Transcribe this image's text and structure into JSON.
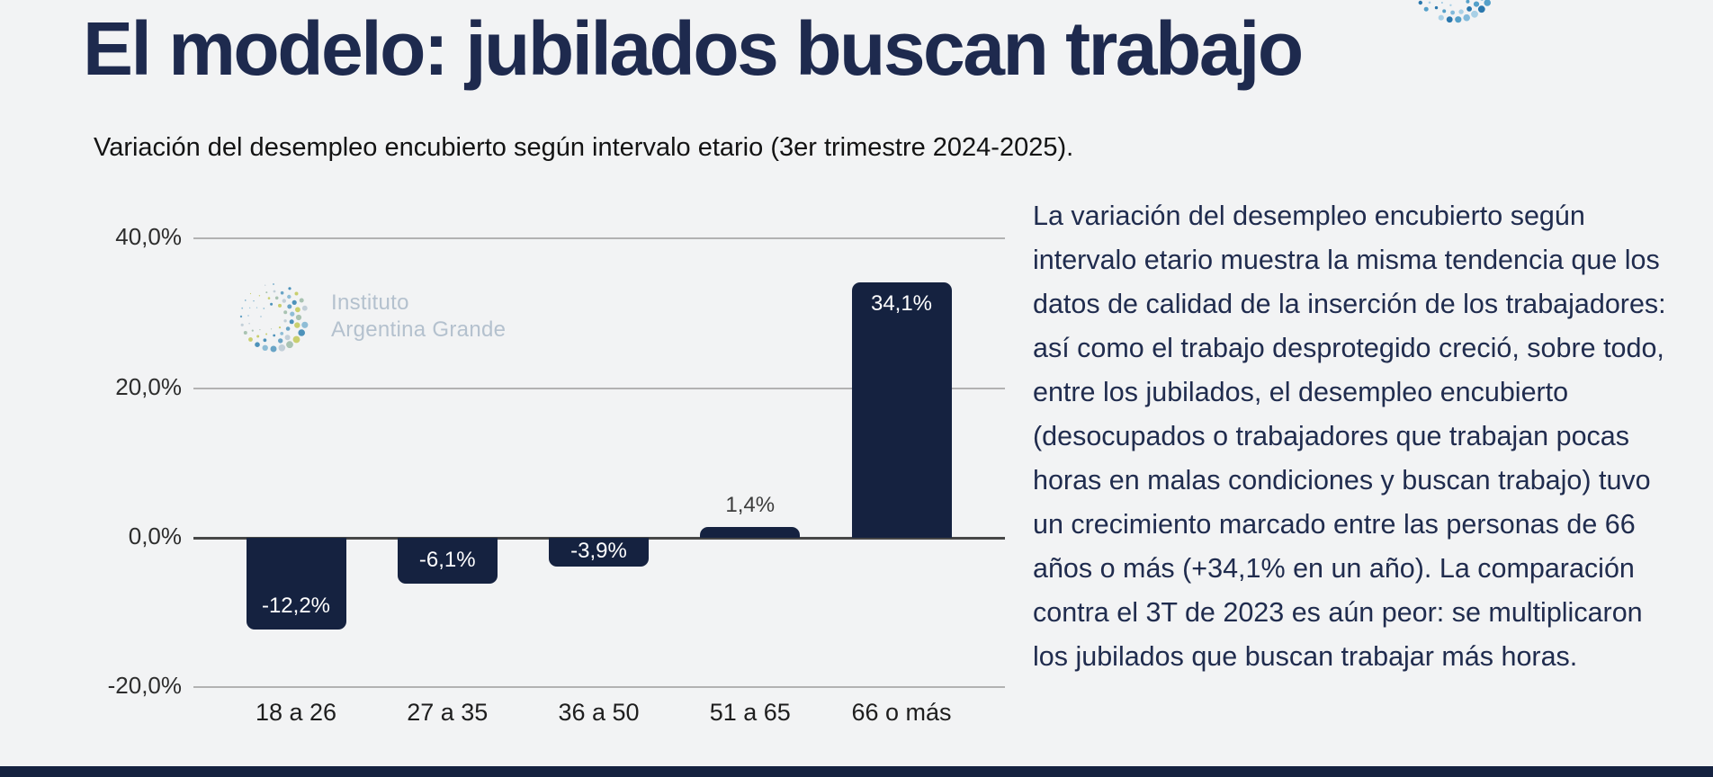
{
  "slide": {
    "title": "El modelo: jubilados buscan trabajo",
    "subtitle": "Variación del desempleo encubierto según intervalo etario (3er trimestre 2024-2025).",
    "body_text": "La variación del desempleo encubierto según intervalo etario muestra la misma tendencia que los datos de calidad de la inserción de los trabajadores: así como el trabajo desprotegido creció, sobre todo, entre los jubilados, el desempleo encubierto (desocupados o trabajadores que trabajan pocas horas en malas condiciones y buscan trabajo) tuvo un crecimiento marcado entre las personas de 66 años o más (+34,1% en un año). La comparación contra el 3T de 2023 es aún peor: se multiplicaron los jubilados que buscan trabajar más horas."
  },
  "watermark": {
    "line1": "Instituto",
    "line2": "Argentina Grande"
  },
  "chart_data": {
    "type": "bar",
    "title": "",
    "xlabel": "",
    "ylabel": "",
    "categories": [
      "18 a 26",
      "27 a 35",
      "36 a 50",
      "51 a 65",
      "66 o más"
    ],
    "values": [
      -12.2,
      -6.1,
      -3.9,
      1.4,
      34.1
    ],
    "value_labels": [
      "-12,2%",
      "-6,1%",
      "-3,9%",
      "1,4%",
      "34,1%"
    ],
    "yticks": [
      40,
      20,
      0,
      -20
    ],
    "ytick_labels": [
      "40,0%",
      "20,0%",
      "0,0%",
      "-20,0%"
    ],
    "ylim": [
      -24,
      44
    ],
    "grid": true,
    "legend": false,
    "bar_color": "#152240"
  },
  "colors": {
    "title_navy": "#1e2a4e",
    "bar_navy": "#152240",
    "background": "#f2f3f4",
    "bottom_bar": "#152240",
    "watermark_text": "#b4c1ce"
  }
}
